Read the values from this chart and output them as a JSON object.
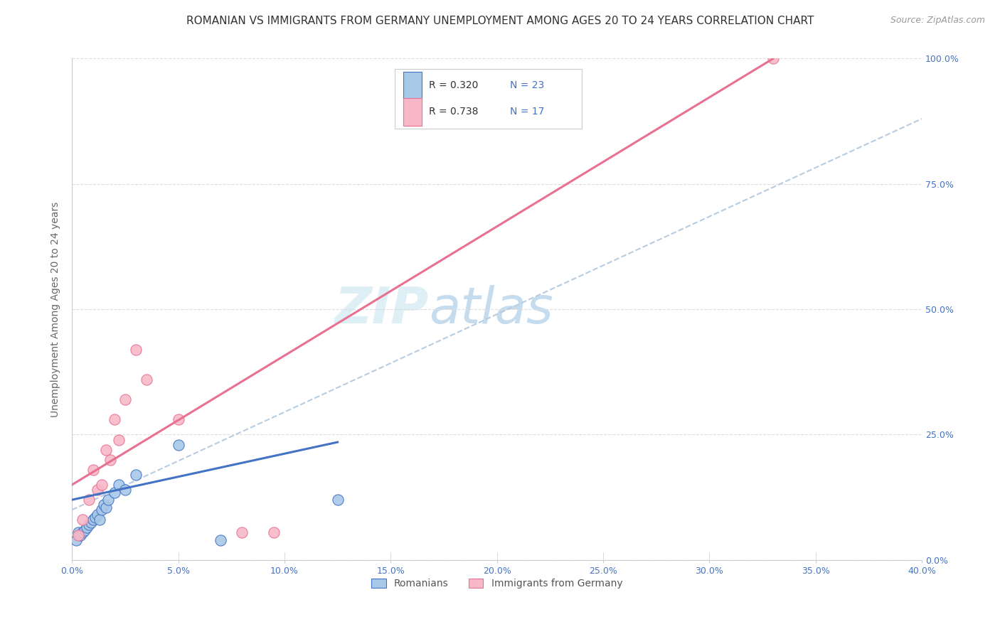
{
  "title": "ROMANIAN VS IMMIGRANTS FROM GERMANY UNEMPLOYMENT AMONG AGES 20 TO 24 YEARS CORRELATION CHART",
  "source": "Source: ZipAtlas.com",
  "ylabel": "Unemployment Among Ages 20 to 24 years",
  "x_tick_labels": [
    "0.0%",
    "",
    "5.0%",
    "",
    "10.0%",
    "",
    "15.0%",
    "",
    "20.0%",
    "",
    "25.0%",
    "",
    "30.0%",
    "",
    "35.0%",
    "",
    "40.0%"
  ],
  "x_tick_vals": [
    0,
    2.5,
    5,
    7.5,
    10,
    12.5,
    15,
    17.5,
    20,
    22.5,
    25,
    27.5,
    30,
    32.5,
    35,
    37.5,
    40
  ],
  "x_tick_labels_shown": [
    "0.0%",
    "5.0%",
    "10.0%",
    "15.0%",
    "20.0%",
    "25.0%",
    "30.0%",
    "35.0%",
    "40.0%"
  ],
  "x_tick_vals_shown": [
    0,
    5,
    10,
    15,
    20,
    25,
    30,
    35,
    40
  ],
  "y_tick_labels": [
    "0.0%",
    "25.0%",
    "50.0%",
    "75.0%",
    "100.0%"
  ],
  "y_tick_vals": [
    0,
    25,
    50,
    75,
    100
  ],
  "xlim": [
    0,
    40
  ],
  "ylim": [
    0,
    100
  ],
  "blue_scatter": [
    [
      0.2,
      4.0
    ],
    [
      0.3,
      5.5
    ],
    [
      0.4,
      5.0
    ],
    [
      0.5,
      5.5
    ],
    [
      0.6,
      6.0
    ],
    [
      0.7,
      6.5
    ],
    [
      0.8,
      7.0
    ],
    [
      0.9,
      7.5
    ],
    [
      1.0,
      8.0
    ],
    [
      1.1,
      8.5
    ],
    [
      1.2,
      9.0
    ],
    [
      1.3,
      8.0
    ],
    [
      1.4,
      10.0
    ],
    [
      1.5,
      11.0
    ],
    [
      1.6,
      10.5
    ],
    [
      1.7,
      12.0
    ],
    [
      2.0,
      13.5
    ],
    [
      2.2,
      15.0
    ],
    [
      2.5,
      14.0
    ],
    [
      3.0,
      17.0
    ],
    [
      5.0,
      23.0
    ],
    [
      7.0,
      4.0
    ],
    [
      12.5,
      12.0
    ]
  ],
  "pink_scatter": [
    [
      0.3,
      5.0
    ],
    [
      0.5,
      8.0
    ],
    [
      0.8,
      12.0
    ],
    [
      1.0,
      18.0
    ],
    [
      1.2,
      14.0
    ],
    [
      1.4,
      15.0
    ],
    [
      1.6,
      22.0
    ],
    [
      1.8,
      20.0
    ],
    [
      2.0,
      28.0
    ],
    [
      2.2,
      24.0
    ],
    [
      2.5,
      32.0
    ],
    [
      3.0,
      42.0
    ],
    [
      3.5,
      36.0
    ],
    [
      5.0,
      28.0
    ],
    [
      8.0,
      5.5
    ],
    [
      9.5,
      5.5
    ],
    [
      33.0,
      100.0
    ]
  ],
  "blue_line_x": [
    0.0,
    12.5
  ],
  "blue_line_y": [
    12.0,
    23.5
  ],
  "pink_line_x": [
    0.0,
    33.0
  ],
  "pink_line_y": [
    15.0,
    100.0
  ],
  "dashed_line_x": [
    0.0,
    40.0
  ],
  "dashed_line_y": [
    10.0,
    88.0
  ],
  "blue_color": "#a8c8e8",
  "pink_color": "#f8b8c8",
  "blue_line_color": "#4472c4",
  "pink_line_color": "#e87090",
  "dashed_line_color": "#b8cce0",
  "scatter_size": 120,
  "legend_blue_r": "R = 0.320",
  "legend_blue_n": "N = 23",
  "legend_pink_r": "R = 0.738",
  "legend_pink_n": "N = 17",
  "legend_label_blue": "Romanians",
  "legend_label_pink": "Immigrants from Germany",
  "watermark_zip": "ZIP",
  "watermark_atlas": "atlas",
  "r_color": "#333333",
  "n_color": "#4472c4",
  "title_fontsize": 11,
  "axis_label_fontsize": 10,
  "tick_fontsize": 9,
  "legend_fontsize": 10,
  "source_fontsize": 9,
  "background_color": "#ffffff",
  "grid_color": "#dddddd"
}
